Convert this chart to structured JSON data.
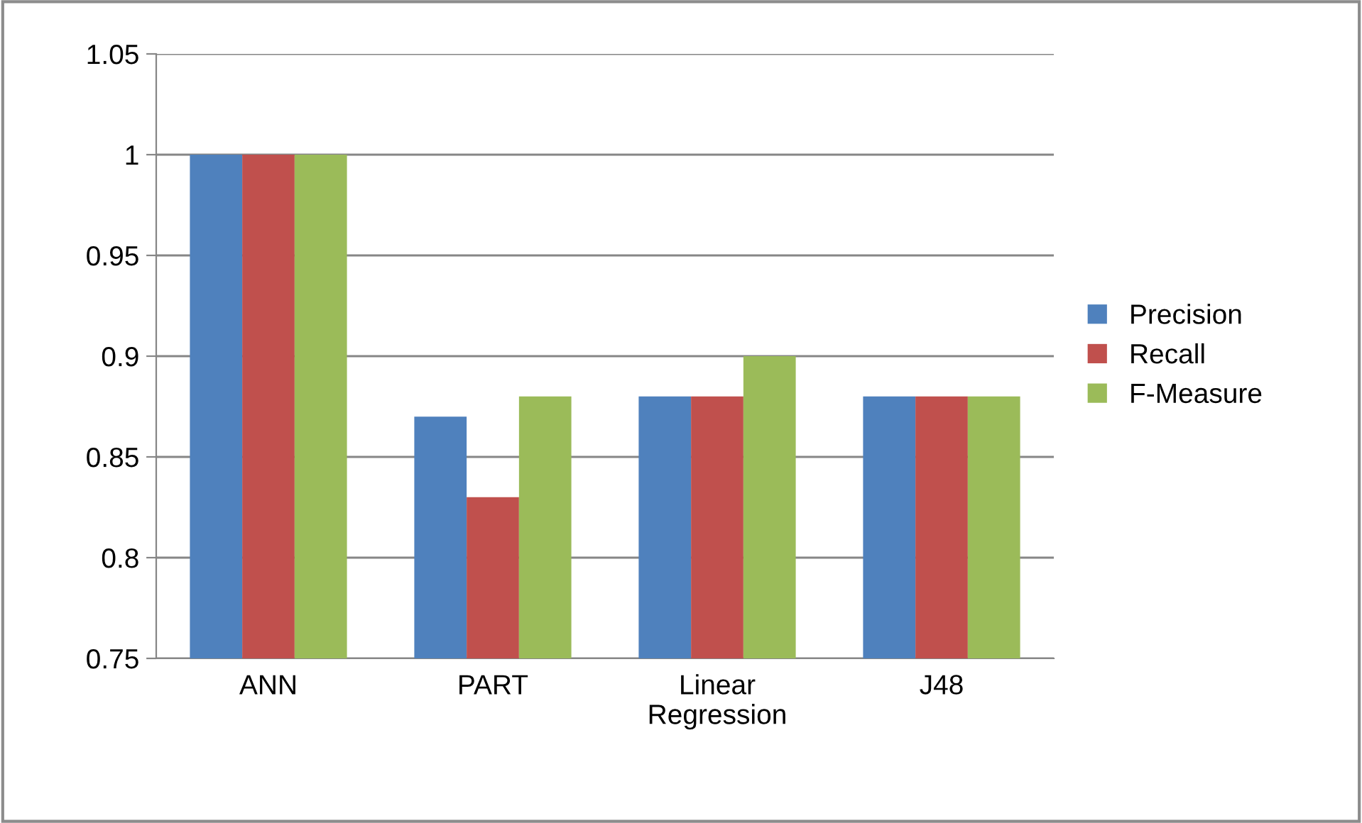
{
  "chart_data": {
    "type": "bar",
    "categories": [
      "ANN",
      "PART",
      "Linear\nRegression",
      "J48"
    ],
    "series": [
      {
        "name": "Precision",
        "color": "#4f81bd",
        "values": [
          1.0,
          0.87,
          0.88,
          0.88
        ]
      },
      {
        "name": "Recall",
        "color": "#c0504d",
        "values": [
          1.0,
          0.83,
          0.88,
          0.88
        ]
      },
      {
        "name": "F-Measure",
        "color": "#9bbb59",
        "values": [
          1.0,
          0.88,
          0.9,
          0.88
        ]
      }
    ],
    "ylim": [
      0.75,
      1.05
    ],
    "yticks": [
      0.75,
      0.8,
      0.85,
      0.9,
      0.95,
      1,
      1.05
    ],
    "grid": "y",
    "legend": "right"
  }
}
